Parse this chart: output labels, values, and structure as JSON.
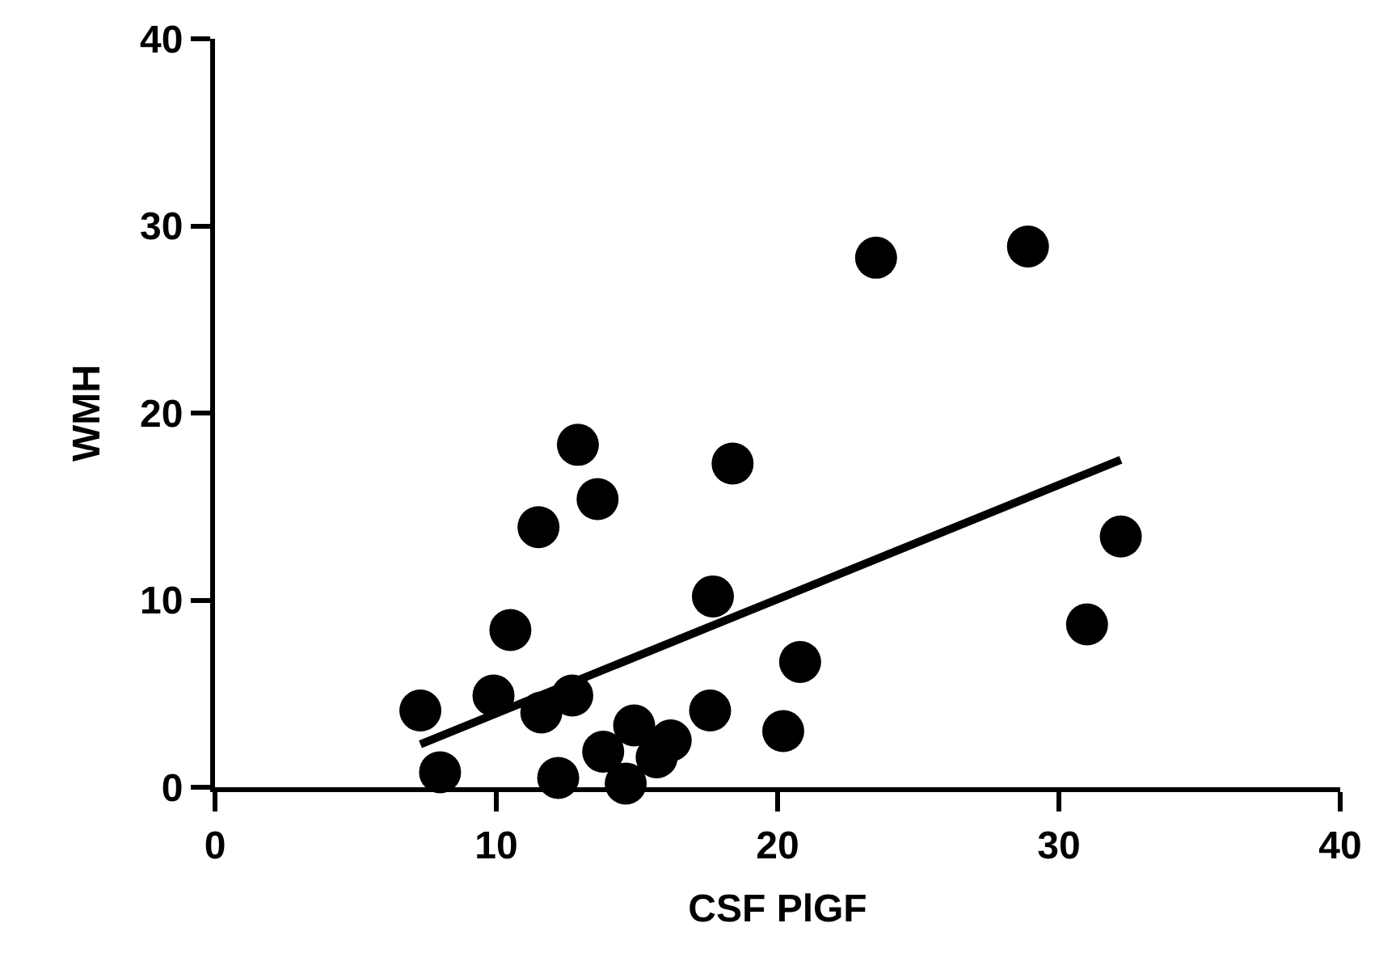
{
  "chart_data": {
    "type": "scatter",
    "xlabel": "CSF PlGF",
    "ylabel": "WMH",
    "xlim": [
      0,
      40
    ],
    "ylim": [
      0,
      40
    ],
    "xticks": [
      0,
      10,
      20,
      30,
      40
    ],
    "yticks": [
      0,
      10,
      20,
      30,
      40
    ],
    "grid": false,
    "series": [
      {
        "color": "#000000",
        "marker": "circle",
        "x": [
          12.9,
          18.4,
          13.6,
          11.5,
          17.7,
          10.5,
          20.8,
          7.3,
          9.9,
          11.6,
          12.7,
          17.6,
          20.2,
          8.0,
          12.2,
          13.8,
          14.9,
          16.2,
          15.7,
          14.6,
          23.5,
          28.9,
          32.2,
          31.0
        ],
        "values": [
          18.3,
          17.3,
          15.4,
          13.9,
          10.2,
          8.4,
          6.7,
          4.1,
          4.9,
          4.0,
          4.9,
          4.1,
          3.0,
          0.8,
          0.5,
          1.9,
          3.3,
          2.5,
          1.6,
          0.2,
          28.3,
          28.9,
          13.4,
          8.7
        ]
      },
      {
        "type": "line",
        "color": "#000000",
        "marker": "none",
        "line_style": "solid",
        "x": [
          7.3,
          32.2
        ],
        "values": [
          2.3,
          17.5
        ]
      }
    ]
  }
}
